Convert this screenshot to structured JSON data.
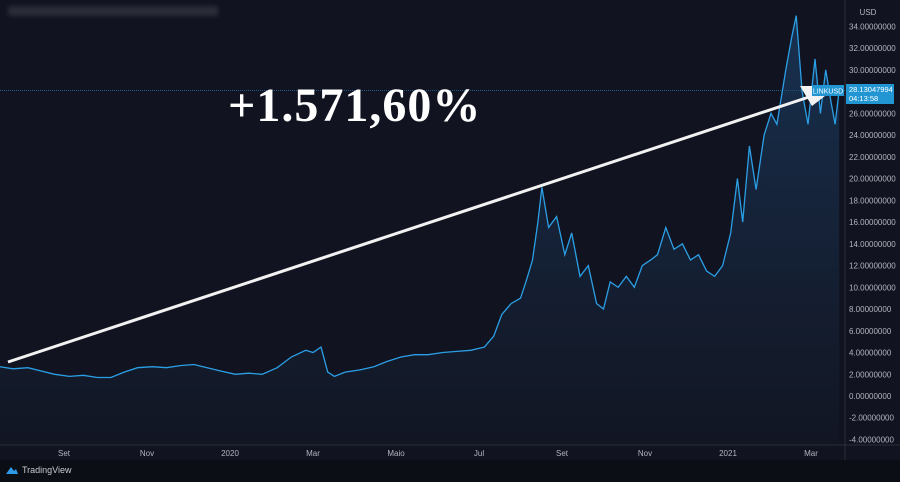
{
  "header": {
    "title": ""
  },
  "annotation": {
    "change_label": "+1.571,60%"
  },
  "price_tag": {
    "symbol": "LINKUSD",
    "price": "28.13047994",
    "countdown": "04:13:58"
  },
  "footer": {
    "brand": "TradingView",
    "logo_icon": "tradingview-cloud-icon"
  },
  "colors": {
    "background": "#111420",
    "line": "#2b9fe6",
    "arrow": "#ffffff",
    "price_tag": "#2196d3"
  },
  "chart_data": {
    "type": "area",
    "currency_label": "USD",
    "ylim": [
      -4,
      36
    ],
    "grid": false,
    "y_ticks": [
      34,
      32,
      30,
      28,
      26,
      24,
      22,
      20,
      18,
      16,
      14,
      12,
      10,
      8,
      6,
      4,
      2,
      0,
      -2,
      -4
    ],
    "y_tick_labels": [
      "34.00000000",
      "32.00000000",
      "30.00000000",
      "",
      "26.00000000",
      "24.00000000",
      "22.00000000",
      "20.00000000",
      "18.00000000",
      "16.00000000",
      "14.00000000",
      "12.00000000",
      "10.00000000",
      "8.00000000",
      "6.00000000",
      "4.00000000",
      "2.00000000",
      "0.00000000",
      "-2.00000000",
      "-4.00000000"
    ],
    "x_ticks": [
      {
        "date": "2019-09-01",
        "label": "Set"
      },
      {
        "date": "2019-11-01",
        "label": "Nov"
      },
      {
        "date": "2020-01-01",
        "label": "2020"
      },
      {
        "date": "2020-03-01",
        "label": "Mar"
      },
      {
        "date": "2020-05-01",
        "label": "Maio"
      },
      {
        "date": "2020-07-01",
        "label": "Jul"
      },
      {
        "date": "2020-09-01",
        "label": "Set"
      },
      {
        "date": "2020-11-01",
        "label": "Nov"
      },
      {
        "date": "2021-01-01",
        "label": "2021"
      },
      {
        "date": "2021-03-01",
        "label": "Mar"
      }
    ],
    "series": [
      {
        "points": [
          [
            "2019-07-15",
            2.7
          ],
          [
            "2019-07-25",
            2.5
          ],
          [
            "2019-08-05",
            2.6
          ],
          [
            "2019-08-15",
            2.3
          ],
          [
            "2019-08-25",
            2.0
          ],
          [
            "2019-09-05",
            1.8
          ],
          [
            "2019-09-15",
            1.9
          ],
          [
            "2019-09-25",
            1.7
          ],
          [
            "2019-10-05",
            1.7
          ],
          [
            "2019-10-15",
            2.2
          ],
          [
            "2019-10-25",
            2.6
          ],
          [
            "2019-11-05",
            2.7
          ],
          [
            "2019-11-15",
            2.6
          ],
          [
            "2019-11-25",
            2.8
          ],
          [
            "2019-12-05",
            2.9
          ],
          [
            "2019-12-15",
            2.6
          ],
          [
            "2019-12-25",
            2.3
          ],
          [
            "2020-01-05",
            2.0
          ],
          [
            "2020-01-15",
            2.1
          ],
          [
            "2020-01-25",
            2.0
          ],
          [
            "2020-02-05",
            2.6
          ],
          [
            "2020-02-15",
            3.6
          ],
          [
            "2020-02-25",
            4.2
          ],
          [
            "2020-03-01",
            4.0
          ],
          [
            "2020-03-07",
            4.5
          ],
          [
            "2020-03-12",
            2.2
          ],
          [
            "2020-03-17",
            1.8
          ],
          [
            "2020-03-25",
            2.2
          ],
          [
            "2020-04-05",
            2.4
          ],
          [
            "2020-04-15",
            2.7
          ],
          [
            "2020-04-25",
            3.2
          ],
          [
            "2020-05-05",
            3.6
          ],
          [
            "2020-05-15",
            3.8
          ],
          [
            "2020-05-25",
            3.8
          ],
          [
            "2020-06-05",
            4.0
          ],
          [
            "2020-06-15",
            4.1
          ],
          [
            "2020-06-25",
            4.2
          ],
          [
            "2020-07-05",
            4.5
          ],
          [
            "2020-07-12",
            5.5
          ],
          [
            "2020-07-18",
            7.5
          ],
          [
            "2020-07-25",
            8.5
          ],
          [
            "2020-08-01",
            9.0
          ],
          [
            "2020-08-05",
            10.5
          ],
          [
            "2020-08-10",
            12.5
          ],
          [
            "2020-08-14",
            16
          ],
          [
            "2020-08-17",
            19.2
          ],
          [
            "2020-08-22",
            15.5
          ],
          [
            "2020-08-28",
            16.5
          ],
          [
            "2020-09-03",
            13
          ],
          [
            "2020-09-08",
            15
          ],
          [
            "2020-09-14",
            11
          ],
          [
            "2020-09-20",
            12
          ],
          [
            "2020-09-26",
            8.5
          ],
          [
            "2020-10-01",
            8
          ],
          [
            "2020-10-06",
            10.5
          ],
          [
            "2020-10-12",
            10
          ],
          [
            "2020-10-18",
            11
          ],
          [
            "2020-10-24",
            10
          ],
          [
            "2020-10-30",
            12
          ],
          [
            "2020-11-05",
            12.5
          ],
          [
            "2020-11-10",
            13
          ],
          [
            "2020-11-16",
            15.5
          ],
          [
            "2020-11-22",
            13.5
          ],
          [
            "2020-11-28",
            14
          ],
          [
            "2020-12-04",
            12.5
          ],
          [
            "2020-12-10",
            13
          ],
          [
            "2020-12-16",
            11.5
          ],
          [
            "2020-12-22",
            11
          ],
          [
            "2020-12-28",
            12
          ],
          [
            "2021-01-03",
            15
          ],
          [
            "2021-01-08",
            20
          ],
          [
            "2021-01-12",
            16
          ],
          [
            "2021-01-17",
            23
          ],
          [
            "2021-01-22",
            19
          ],
          [
            "2021-01-28",
            24
          ],
          [
            "2021-02-02",
            26
          ],
          [
            "2021-02-06",
            25
          ],
          [
            "2021-02-12",
            30
          ],
          [
            "2021-02-16",
            33
          ],
          [
            "2021-02-19",
            35
          ],
          [
            "2021-02-23",
            28
          ],
          [
            "2021-02-27",
            25
          ],
          [
            "2021-03-04",
            31
          ],
          [
            "2021-03-08",
            26
          ],
          [
            "2021-03-12",
            30
          ],
          [
            "2021-03-16",
            27
          ],
          [
            "2021-03-19",
            25
          ],
          [
            "2021-03-22",
            28.1
          ]
        ]
      }
    ]
  }
}
